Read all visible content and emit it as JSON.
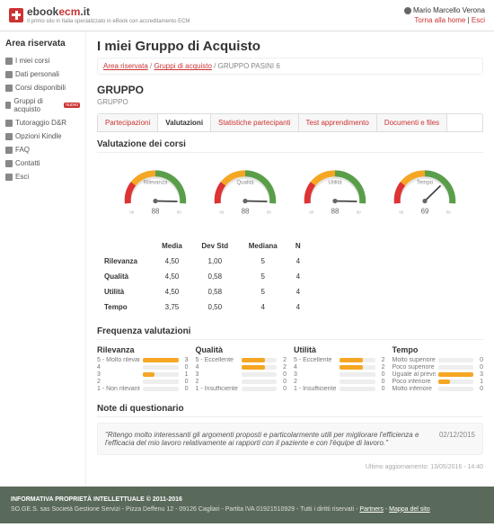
{
  "header": {
    "logo_main": "ebook",
    "logo_accent": "ecm",
    "logo_suffix": ".it",
    "logo_sub": "Il primo sito in Italia specializzato in eBook con accreditamento ECM",
    "user": "Mario Marcello Verona",
    "home_link": "Torna alla home",
    "sep": " | ",
    "exit": "Esci"
  },
  "sidebar": {
    "title": "Area riservata",
    "items": [
      {
        "label": "I miei corsi"
      },
      {
        "label": "Dati personali"
      },
      {
        "label": "Corsi disponibili"
      },
      {
        "label": "Gruppi di acquisto",
        "badge": "nuovo"
      },
      {
        "label": "Tutoraggio D&R"
      },
      {
        "label": "Opzioni Kindle"
      },
      {
        "label": "FAQ"
      },
      {
        "label": "Contatti"
      },
      {
        "label": "Esci"
      }
    ]
  },
  "main": {
    "title": "I miei Gruppo di Acquisto",
    "breadcrumb": [
      "Area riservata",
      "Gruppi di acquisto",
      "GRUPPO PASINI 6"
    ],
    "group_label": "GRUPPO",
    "group_sub": "GRUPPO",
    "tabs": [
      "Partecipazioni",
      "Valutazioni",
      "Statistiche partecipanti",
      "Test apprendimento",
      "Documenti e files"
    ],
    "active_tab": 1,
    "section_valutazione": "Valutazione dei corsi",
    "gauges": [
      {
        "label": "Rilevanza",
        "value": 88,
        "scale100": true
      },
      {
        "label": "Qualità",
        "value": 88,
        "scale100": true
      },
      {
        "label": "Utilità",
        "value": 88,
        "scale100": true
      },
      {
        "label": "Tempo",
        "value": 69,
        "scale100": true
      }
    ],
    "stats": {
      "headers": [
        "",
        "Media",
        "Dev Std",
        "Mediana",
        "N"
      ],
      "rows": [
        [
          "Rilevanza",
          "4,50",
          "1,00",
          "5",
          "4"
        ],
        [
          "Qualità",
          "4,50",
          "0,58",
          "5",
          "4"
        ],
        [
          "Utilità",
          "4,50",
          "0,58",
          "5",
          "4"
        ],
        [
          "Tempo",
          "3,75",
          "0,50",
          "4",
          "4"
        ]
      ]
    },
    "section_freq": "Frequenza valutazioni",
    "freq_cols": [
      {
        "title": "Rilevanza",
        "rows": [
          [
            "5 - Molto rilevante",
            3
          ],
          [
            "4",
            0
          ],
          [
            "3",
            1
          ],
          [
            "2",
            0
          ],
          [
            "1 - Non rilevante",
            0
          ]
        ]
      },
      {
        "title": "Qualità",
        "rows": [
          [
            "5 - Eccellente",
            2
          ],
          [
            "4",
            2
          ],
          [
            "3",
            0
          ],
          [
            "2",
            0
          ],
          [
            "1 - Insufficiente",
            0
          ]
        ]
      },
      {
        "title": "Utilità",
        "rows": [
          [
            "5 - Eccellente",
            2
          ],
          [
            "4",
            2
          ],
          [
            "3",
            0
          ],
          [
            "2",
            0
          ],
          [
            "1 - Insufficiente",
            0
          ]
        ]
      },
      {
        "title": "Tempo",
        "rows": [
          [
            "Molto superiore",
            0
          ],
          [
            "Poco superiore",
            0
          ],
          [
            "Uguale al previsto",
            3
          ],
          [
            "Poco inferiore",
            1
          ],
          [
            "Molto inferiore",
            0
          ]
        ]
      }
    ],
    "freq_max": 3,
    "section_note": "Note di questionario",
    "note_text": "\"Ritengo molto interessanti gli argomenti proposti e particolarmente utili per migliorare l'efficienza e l'efficacia del mio lavoro relativamente ai rapporti con il paziente e con l'équipe di lavoro.\"",
    "note_date": "02/12/2015",
    "last_update": "Ultimo aggiornamento: 13/05/2016 - 14:40"
  },
  "footer": {
    "title": "INFORMATIVA PROPRIETÀ INTELLETTUALE © 2011-2016",
    "body": "SO.GE.S. sas Società Gestione Servizi - Pizza Deffenu 12 - 09126 Cagliari - Partita IVA 01921510929 - Tutti i diritti riservati - ",
    "link1": "Partners",
    "sep": " - ",
    "link2": "Mappa del sito"
  },
  "colors": {
    "gauge_red": "#d33",
    "gauge_yellow": "#f5a623",
    "gauge_green": "#5a9e4a",
    "gauge_bg": "#eee"
  }
}
